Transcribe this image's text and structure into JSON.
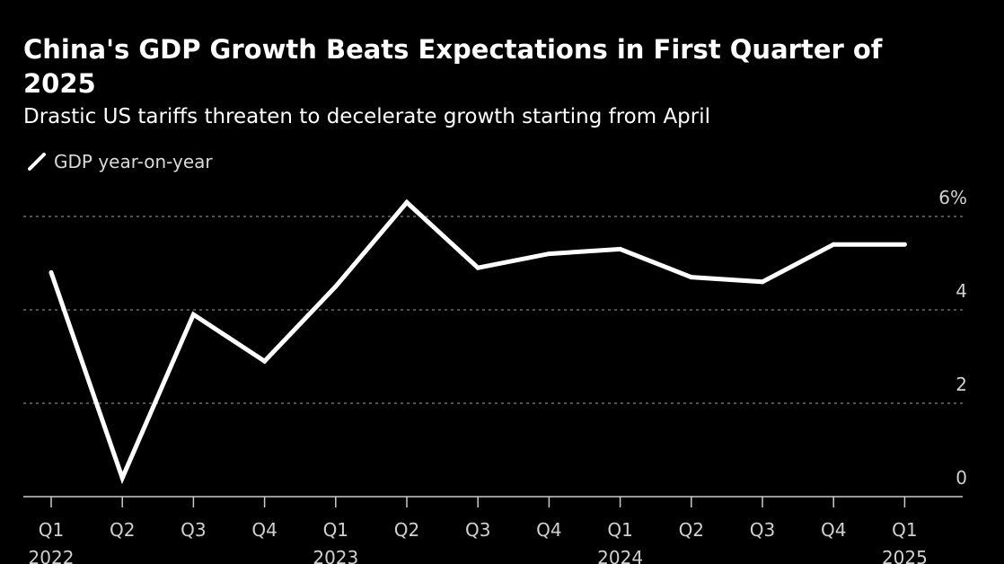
{
  "chart_data": {
    "type": "line",
    "title": "China's GDP Growth Beats Expectations in First Quarter of 2025",
    "subtitle": "Drastic US tariffs threaten to decelerate growth starting from April",
    "xlabel": "",
    "ylabel": "",
    "ylim": [
      0,
      6
    ],
    "y_ticks": [
      {
        "value": 0,
        "label": "0"
      },
      {
        "value": 2,
        "label": "2"
      },
      {
        "value": 4,
        "label": "4"
      },
      {
        "value": 6,
        "label": "6%"
      }
    ],
    "grid": true,
    "legend_position": "top-left",
    "categories": [
      "Q1",
      "Q2",
      "Q3",
      "Q4",
      "Q1",
      "Q2",
      "Q3",
      "Q4",
      "Q1",
      "Q2",
      "Q3",
      "Q4",
      "Q1"
    ],
    "year_labels": [
      {
        "index": 0,
        "label": "2022"
      },
      {
        "index": 4,
        "label": "2023"
      },
      {
        "index": 8,
        "label": "2024"
      },
      {
        "index": 12,
        "label": "2025"
      }
    ],
    "series": [
      {
        "name": "GDP year-on-year",
        "color": "#ffffff",
        "values": [
          4.8,
          0.4,
          3.9,
          2.9,
          4.5,
          6.3,
          4.9,
          5.2,
          5.3,
          4.7,
          4.6,
          5.4,
          5.4
        ]
      }
    ]
  },
  "colors": {
    "background": "#000000",
    "line": "#ffffff",
    "grid": "#6e6e6e",
    "axis": "#cccccc",
    "tick_text": "#d0d0d0",
    "legend_text": "#d9d9d9"
  }
}
